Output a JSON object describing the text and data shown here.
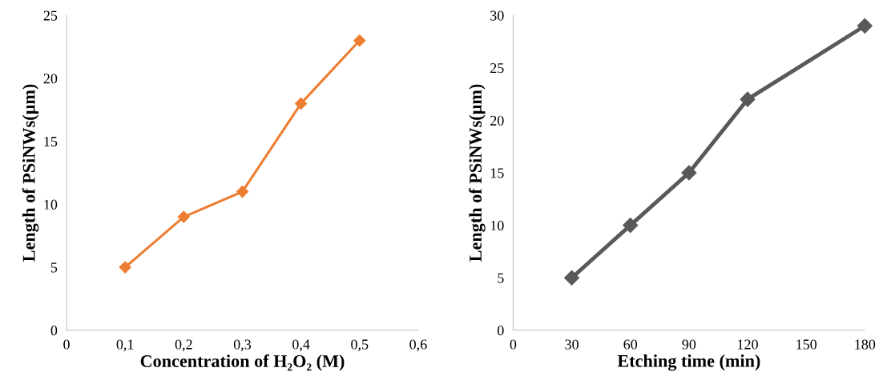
{
  "chart_data": [
    {
      "type": "line",
      "xlabel": "Concentration of H₂O₂ (M)",
      "ylabel": "Length of PSiNWs(µm)",
      "x": [
        0.1,
        0.2,
        0.3,
        0.4,
        0.5
      ],
      "series": [
        {
          "color": "#ed7d31",
          "values": [
            5,
            9,
            11,
            18,
            23
          ]
        }
      ],
      "xlim": [
        0,
        0.6
      ],
      "xticks": [
        0,
        {
          "value": 0.1,
          "label": "0,1"
        },
        {
          "value": 0.2,
          "label": "0,2"
        },
        {
          "value": 0.3,
          "label": "0,3"
        },
        {
          "value": 0.4,
          "label": "0,4"
        },
        {
          "value": 0.5,
          "label": "0,5"
        },
        {
          "value": 0.6,
          "label": "0,6"
        }
      ],
      "ylim": [
        0,
        25
      ],
      "yticks": [
        0,
        5,
        10,
        15,
        20,
        25
      ],
      "marker": "diamond",
      "line_style": "solid",
      "grid": false
    },
    {
      "type": "line",
      "xlabel": "Etching time (min)",
      "ylabel": "Length of PSiNWs(µm)",
      "x": [
        30,
        60,
        90,
        120,
        180
      ],
      "series": [
        {
          "color": "#595959",
          "values": [
            5,
            10,
            15,
            22,
            29
          ]
        }
      ],
      "xlim": [
        0,
        180
      ],
      "xticks": [
        0,
        30,
        60,
        90,
        120,
        150,
        180
      ],
      "ylim": [
        0,
        30
      ],
      "yticks": [
        0,
        5,
        10,
        15,
        20,
        25,
        30
      ],
      "marker": "diamond",
      "line_style": "solid",
      "grid": false
    }
  ]
}
